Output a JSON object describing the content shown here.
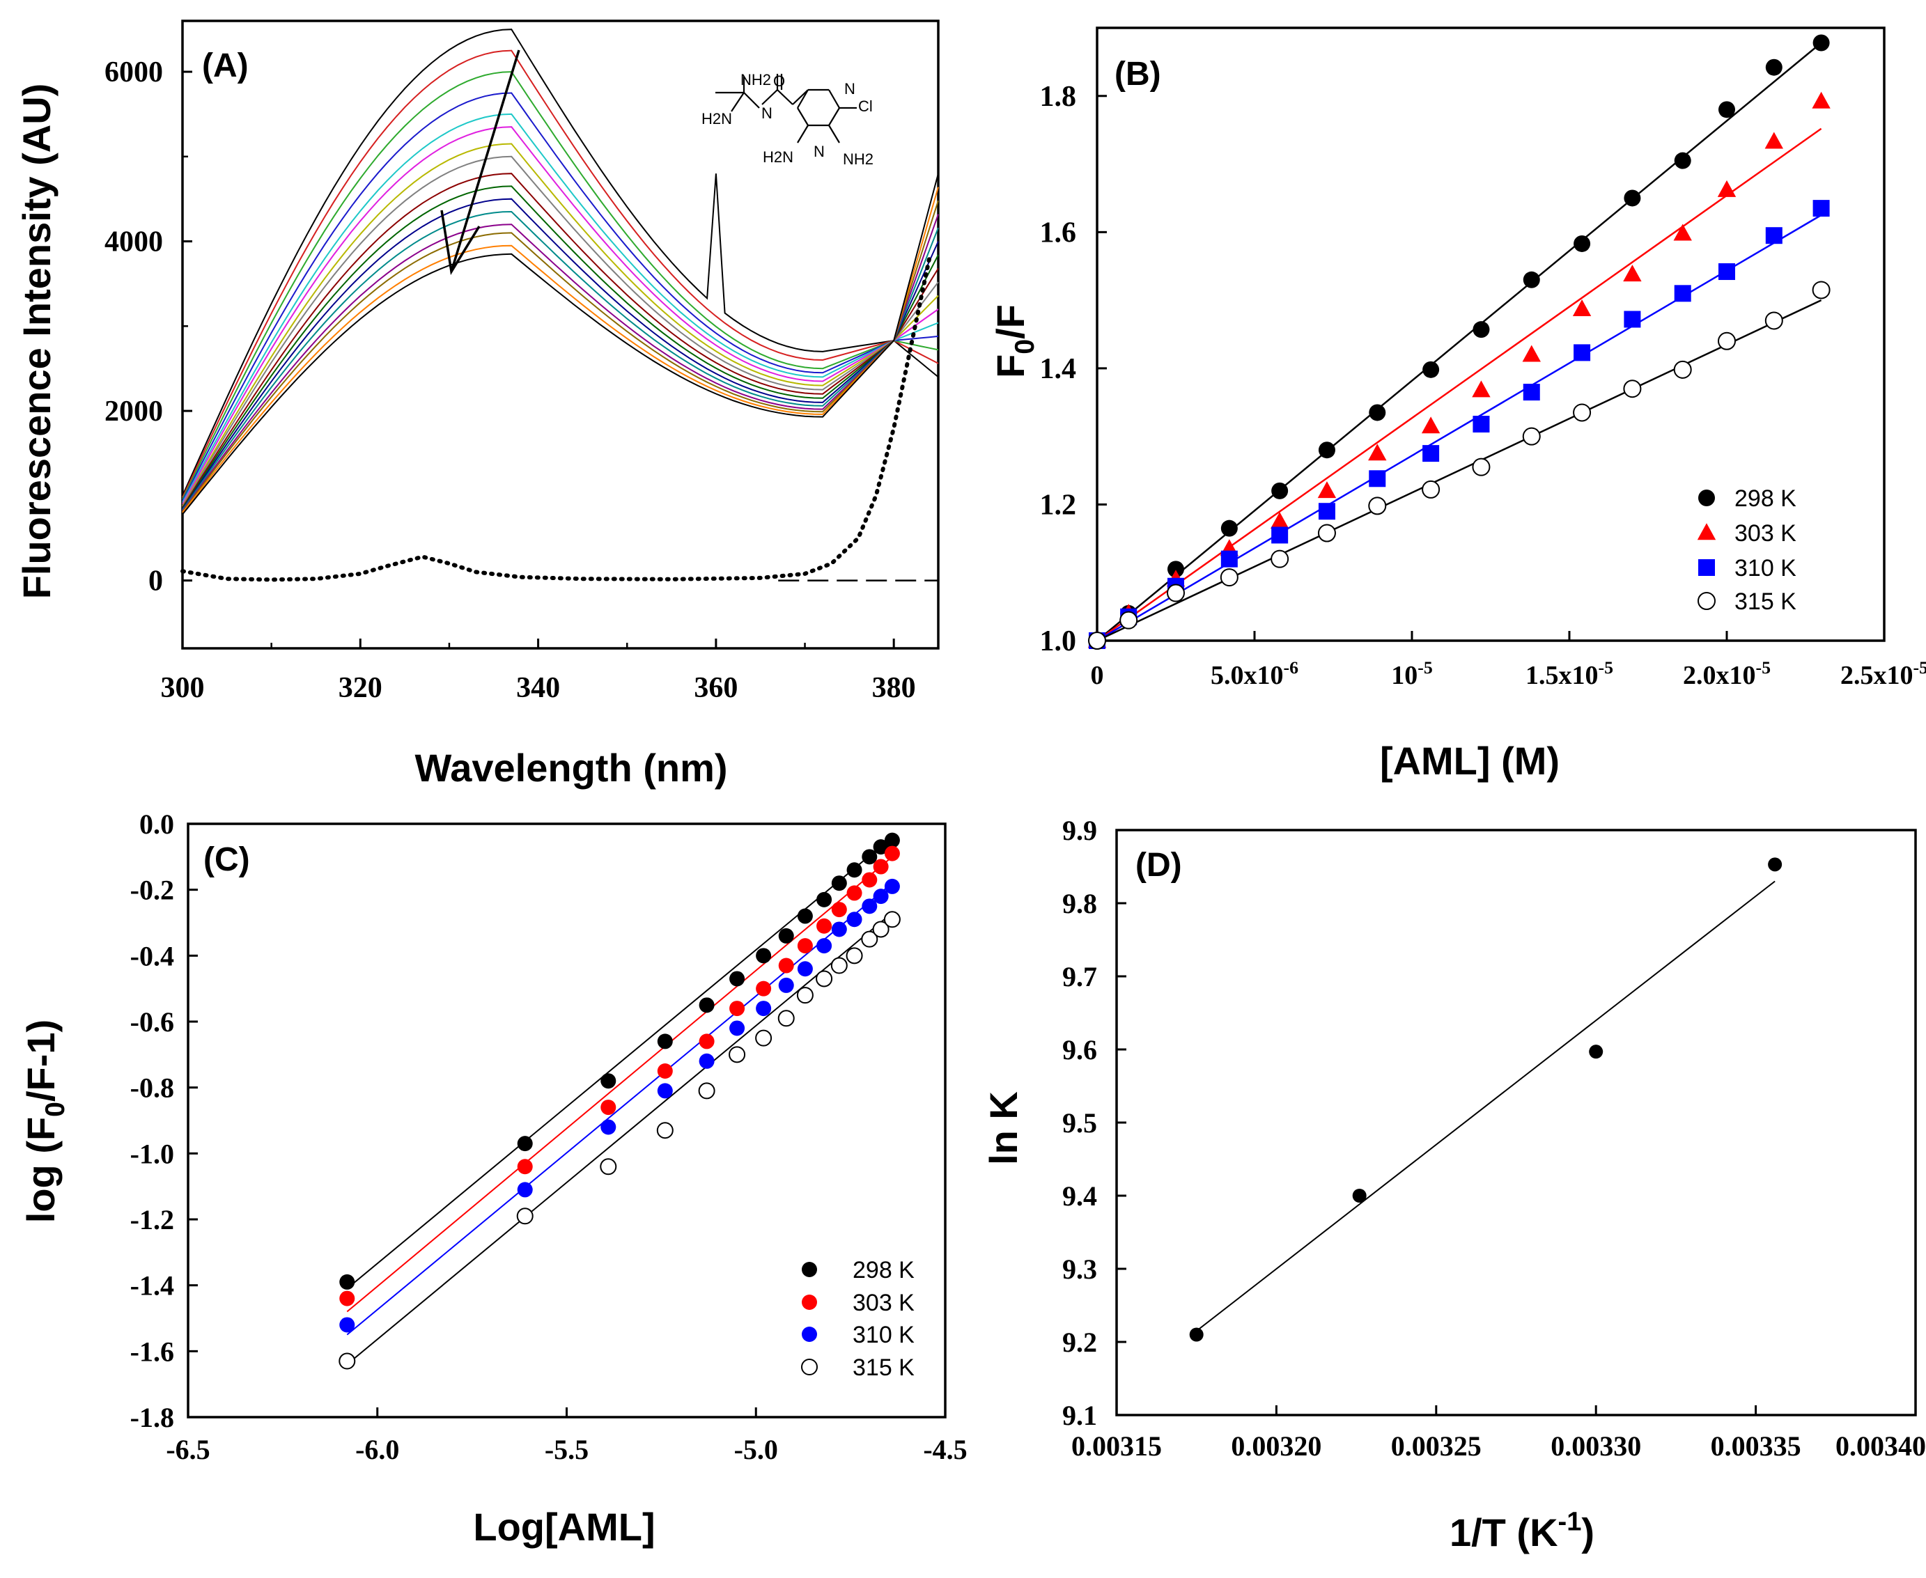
{
  "figure": {
    "background": "#ffffff"
  },
  "chart_data": [
    {
      "panel": "A",
      "type": "line",
      "panel_label": "(A)",
      "xlabel": "Wavelength (nm)",
      "ylabel": "Fluorescence Intensity (AU)",
      "xlim": [
        300,
        385
      ],
      "ylim": [
        -800,
        6600
      ],
      "xticks": [
        "300",
        "320",
        "340",
        "360",
        "380"
      ],
      "yticks": [
        "0",
        "2000",
        "4000",
        "6000"
      ],
      "peak_wavelength": 337,
      "isosbestic_point": [
        380,
        2830
      ],
      "series_colors": [
        "#000000",
        "#d62020",
        "#2eaa2e",
        "#1a1acc",
        "#1ec8c8",
        "#e020e0",
        "#b8b800",
        "#808080",
        "#8b0000",
        "#006400",
        "#00008b",
        "#008b8b",
        "#8b008b",
        "#8b6b00",
        "#ff7f00",
        "#000000"
      ],
      "series_peaks": [
        6500,
        6250,
        6000,
        5750,
        5500,
        5350,
        5150,
        5000,
        4800,
        4650,
        4500,
        4350,
        4200,
        4100,
        3950,
        3850
      ],
      "series_start": [
        1000,
        980,
        960,
        940,
        920,
        900,
        880,
        870,
        860,
        850,
        840,
        830,
        820,
        810,
        800,
        780
      ],
      "series_trough": [
        2700,
        2600,
        2500,
        2450,
        2400,
        2350,
        2300,
        2250,
        2200,
        2150,
        2100,
        2060,
        2020,
        1990,
        1960,
        1930
      ],
      "dotted_series": [
        {
          "x": 300,
          "y": 110
        },
        {
          "x": 305,
          "y": 20
        },
        {
          "x": 310,
          "y": 10
        },
        {
          "x": 315,
          "y": 20
        },
        {
          "x": 320,
          "y": 80
        },
        {
          "x": 323,
          "y": 170
        },
        {
          "x": 327,
          "y": 280
        },
        {
          "x": 330,
          "y": 200
        },
        {
          "x": 333,
          "y": 100
        },
        {
          "x": 338,
          "y": 40
        },
        {
          "x": 345,
          "y": 20
        },
        {
          "x": 355,
          "y": 15
        },
        {
          "x": 365,
          "y": 30
        },
        {
          "x": 370,
          "y": 80
        },
        {
          "x": 373,
          "y": 200
        },
        {
          "x": 376,
          "y": 500
        },
        {
          "x": 378,
          "y": 1000
        },
        {
          "x": 380,
          "y": 1800
        },
        {
          "x": 382,
          "y": 2800
        },
        {
          "x": 384,
          "y": 3800
        }
      ],
      "dashed_baseline": {
        "x": [
          367,
          385
        ],
        "y": 0
      }
    },
    {
      "panel": "B",
      "type": "scatter",
      "panel_label": "(B)",
      "xlabel": "[AML] (M)",
      "ylabel": "F0/F",
      "xlim": [
        0,
        2.5e-05
      ],
      "ylim": [
        1.0,
        1.9
      ],
      "xticks": [
        "0",
        "5.0x10-6",
        "10-5",
        "1.5x10-5",
        "2.0x10-5",
        "2.5x10-5"
      ],
      "yticks": [
        "1.0",
        "1.2",
        "1.4",
        "1.6",
        "1.8"
      ],
      "x": [
        0,
        1e-06,
        2.5e-06,
        4.2e-06,
        5.8e-06,
        7.3e-06,
        8.9e-06,
        1.06e-05,
        1.22e-05,
        1.38e-05,
        1.54e-05,
        1.7e-05,
        1.86e-05,
        2e-05,
        2.15e-05,
        2.3e-05
      ],
      "series": [
        {
          "name": "298 K",
          "marker": "circle-filled",
          "color": "#000000",
          "values": [
            1.0,
            1.04,
            1.105,
            1.165,
            1.22,
            1.28,
            1.335,
            1.398,
            1.457,
            1.53,
            1.583,
            1.65,
            1.705,
            1.78,
            1.842,
            1.878
          ],
          "fit": [
            1.0,
            1.878
          ]
        },
        {
          "name": "303 K",
          "marker": "triangle-filled",
          "color": "#ff0000",
          "values": [
            1.0,
            1.04,
            1.09,
            1.135,
            1.175,
            1.22,
            1.275,
            1.315,
            1.368,
            1.42,
            1.487,
            1.538,
            1.598,
            1.662,
            1.733,
            1.792
          ],
          "fit": [
            1.0,
            1.752
          ]
        },
        {
          "name": "310 K",
          "marker": "square-filled",
          "color": "#0000ff",
          "values": [
            1.0,
            1.035,
            1.08,
            1.12,
            1.155,
            1.19,
            1.238,
            1.275,
            1.318,
            1.365,
            1.423,
            1.472,
            1.51,
            1.542,
            1.595,
            1.635
          ],
          "fit": [
            1.0,
            1.625
          ]
        },
        {
          "name": "315 K",
          "marker": "circle-open",
          "color": "#000000",
          "values": [
            1.0,
            1.03,
            1.07,
            1.093,
            1.12,
            1.158,
            1.198,
            1.222,
            1.255,
            1.3,
            1.335,
            1.37,
            1.398,
            1.44,
            1.47,
            1.515
          ],
          "fit": [
            1.0,
            1.5
          ]
        }
      ]
    },
    {
      "panel": "C",
      "type": "scatter",
      "panel_label": "(C)",
      "xlabel": "Log[AML]",
      "ylabel": "log (F0/F-1)",
      "xlim": [
        -6.5,
        -4.5
      ],
      "ylim": [
        -1.8,
        0.0
      ],
      "xticks": [
        "-6.5",
        "-6.0",
        "-5.5",
        "-5.0",
        "-4.5"
      ],
      "yticks": [
        "0.0",
        "-0.2",
        "-0.4",
        "-0.6",
        "-0.8",
        "-1.0",
        "-1.2",
        "-1.4",
        "-1.6",
        "-1.8"
      ],
      "x": [
        -6.08,
        -5.61,
        -5.39,
        -5.24,
        -5.13,
        -5.05,
        -4.98,
        -4.92,
        -4.87,
        -4.82,
        -4.78,
        -4.74,
        -4.7,
        -4.67,
        -4.64
      ],
      "series": [
        {
          "name": "298 K",
          "marker": "circle-filled",
          "color": "#000000",
          "values": [
            -1.39,
            -0.97,
            -0.78,
            -0.66,
            -0.55,
            -0.47,
            -0.4,
            -0.34,
            -0.28,
            -0.23,
            -0.18,
            -0.14,
            -0.1,
            -0.07,
            -0.05
          ],
          "fit": [
            -1.41,
            -0.04
          ]
        },
        {
          "name": "303 K",
          "marker": "circle-filled",
          "color": "#ff0000",
          "values": [
            -1.44,
            -1.04,
            -0.86,
            -0.75,
            -0.66,
            -0.56,
            -0.5,
            -0.43,
            -0.37,
            -0.31,
            -0.26,
            -0.21,
            -0.17,
            -0.13,
            -0.09
          ],
          "fit": [
            -1.48,
            -0.1
          ]
        },
        {
          "name": "310 K",
          "marker": "circle-filled",
          "color": "#0000ff",
          "values": [
            -1.52,
            -1.11,
            -0.92,
            -0.81,
            -0.72,
            -0.62,
            -0.56,
            -0.49,
            -0.44,
            -0.37,
            -0.32,
            -0.29,
            -0.25,
            -0.22,
            -0.19
          ],
          "fit": [
            -1.55,
            -0.18
          ]
        },
        {
          "name": "315 K",
          "marker": "circle-open",
          "color": "#000000",
          "values": [
            -1.63,
            -1.19,
            -1.04,
            -0.93,
            -0.81,
            -0.7,
            -0.65,
            -0.59,
            -0.52,
            -0.47,
            -0.43,
            -0.4,
            -0.35,
            -0.32,
            -0.29
          ],
          "fit": [
            -1.64,
            -0.27
          ]
        }
      ]
    },
    {
      "panel": "D",
      "type": "scatter",
      "panel_label": "(D)",
      "xlabel": "1/T (K-1)",
      "ylabel": "ln K",
      "xlim": [
        0.00315,
        0.0034
      ],
      "ylim": [
        9.1,
        9.9
      ],
      "xticks": [
        "0.00315",
        "0.00320",
        "0.00325",
        "0.00330",
        "0.00335",
        "0.00340"
      ],
      "yticks": [
        "9.1",
        "9.2",
        "9.3",
        "9.4",
        "9.5",
        "9.6",
        "9.7",
        "9.8",
        "9.9"
      ],
      "series": [
        {
          "name": "ln K",
          "marker": "circle-filled",
          "color": "#000000",
          "x": [
            0.003175,
            0.003226,
            0.0033,
            0.003356
          ],
          "values": [
            9.21,
            9.4,
            9.597,
            9.853
          ]
        }
      ],
      "fit": {
        "x": [
          0.003175,
          0.003356
        ],
        "y": [
          9.215,
          9.83
        ]
      }
    }
  ]
}
